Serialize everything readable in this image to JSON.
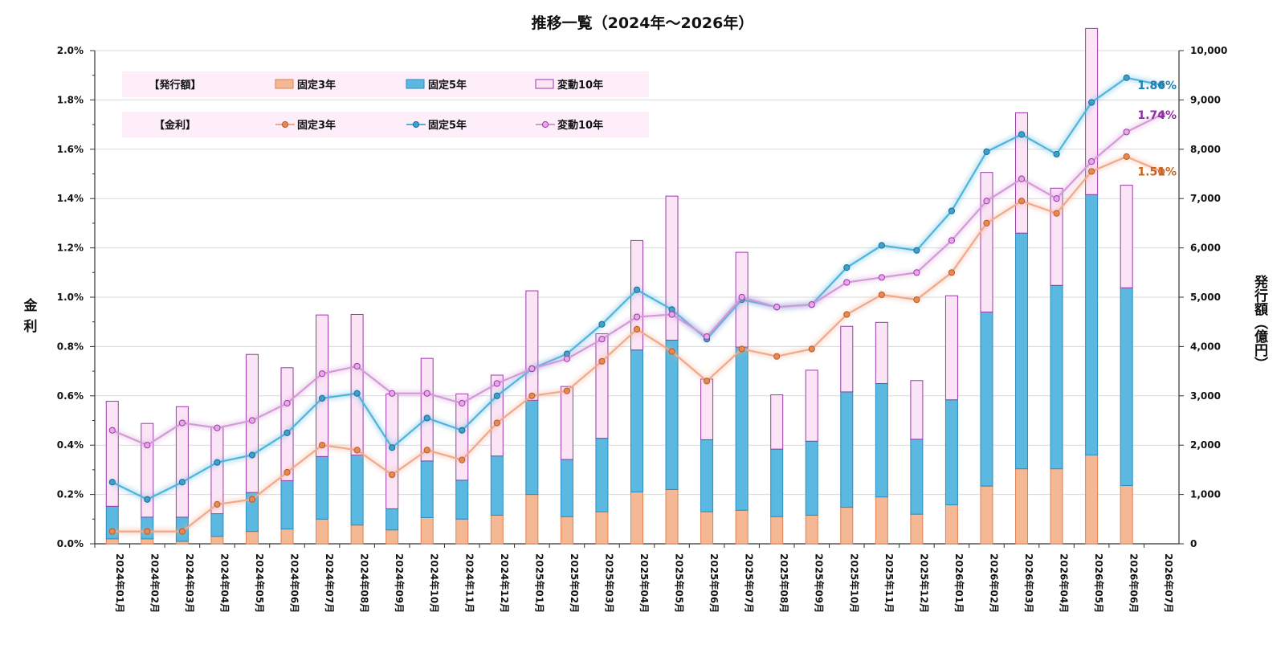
{
  "chart_data": {
    "type": "bar",
    "title": "推移一覧（2024年～2026年）",
    "ylabel_left": "金利",
    "ylabel_right": "発行額（億円）",
    "ylim_left": [
      0,
      2.0
    ],
    "ylim_right": [
      0,
      10000
    ],
    "left_ticks": [
      "0.0%",
      "0.2%",
      "0.4%",
      "0.6%",
      "0.8%",
      "1.0%",
      "1.2%",
      "1.4%",
      "1.6%",
      "1.8%",
      "2.0%"
    ],
    "right_ticks": [
      "0",
      "1,000",
      "2,000",
      "3,000",
      "4,000",
      "5,000",
      "6,000",
      "7,000",
      "8,000",
      "9,000",
      "10,000"
    ],
    "grid": true,
    "legend_position": "top-left",
    "categories": [
      "2024年01月",
      "2024年02月",
      "2024年03月",
      "2024年04月",
      "2024年05月",
      "2024年06月",
      "2024年07月",
      "2024年08月",
      "2024年09月",
      "2024年10月",
      "2024年11月",
      "2024年12月",
      "2025年01月",
      "2025年02月",
      "2025年03月",
      "2025年04月",
      "2025年05月",
      "2025年06月",
      "2025年07月",
      "2025年08月",
      "2025年09月",
      "2025年10月",
      "2025年11月",
      "2025年12月",
      "2026年01月",
      "2026年02月",
      "2026年03月",
      "2026年04月",
      "2026年05月",
      "2026年06月",
      "2026年07月"
    ],
    "legend": {
      "issue_group_label": "【発行額】",
      "rate_group_label": "【金利】",
      "issue_items": [
        "固定3年",
        "固定5年",
        "変動10年"
      ],
      "rate_items": [
        "固定3年",
        "固定5年",
        "変動10年"
      ]
    },
    "bar_series": [
      {
        "name": "固定3年",
        "color": "#f5b895",
        "stroke": "#e08050",
        "values": [
          100,
          100,
          50,
          150,
          250,
          300,
          500,
          380,
          280,
          530,
          500,
          580,
          1000,
          550,
          650,
          1050,
          1100,
          650,
          680,
          550,
          580,
          740,
          950,
          600,
          790,
          1170,
          1520,
          1520,
          1800,
          1180,
          null
        ]
      },
      {
        "name": "固定5年",
        "color": "#5bb8e0",
        "stroke": "#2a8cc0",
        "values": [
          660,
          440,
          490,
          460,
          790,
          980,
          1270,
          1420,
          430,
          1150,
          790,
          1200,
          1910,
          1160,
          1490,
          2880,
          3030,
          1460,
          3310,
          1370,
          1500,
          2340,
          2300,
          1520,
          2130,
          3530,
          4780,
          3720,
          5280,
          4010,
          null
        ]
      },
      {
        "name": "変動10年",
        "color": "#fbe4f5",
        "stroke": "#9b39a8",
        "values": [
          2130,
          1900,
          2240,
          1760,
          2800,
          2290,
          2870,
          2850,
          2330,
          2080,
          1750,
          1640,
          2220,
          1480,
          2120,
          2220,
          2920,
          1230,
          1920,
          1100,
          1440,
          1330,
          1240,
          1190,
          2110,
          2830,
          2440,
          1970,
          3370,
          2080,
          null
        ]
      }
    ],
    "line_series": [
      {
        "name": "固定3年",
        "color": "#f0a98a",
        "marker_fill": "#e88a50",
        "marker_stroke": "#b5592a",
        "values": [
          0.05,
          0.05,
          0.05,
          0.16,
          0.18,
          0.29,
          0.4,
          0.38,
          0.28,
          0.38,
          0.34,
          0.49,
          0.6,
          0.62,
          0.74,
          0.87,
          0.78,
          0.66,
          0.79,
          0.76,
          0.79,
          0.93,
          1.01,
          0.99,
          1.1,
          1.3,
          1.39,
          1.34,
          1.51,
          1.57,
          1.51
        ],
        "end_label": "1.51%",
        "end_label_color": "#c8641e"
      },
      {
        "name": "固定5年",
        "color": "#4fb4dc",
        "marker_fill": "#3fa0cc",
        "marker_stroke": "#1a6b96",
        "values": [
          0.25,
          0.18,
          0.25,
          0.33,
          0.36,
          0.45,
          0.59,
          0.61,
          0.39,
          0.51,
          0.46,
          0.6,
          0.71,
          0.77,
          0.89,
          1.03,
          0.95,
          0.83,
          0.99,
          0.96,
          0.97,
          1.12,
          1.21,
          1.19,
          1.35,
          1.59,
          1.66,
          1.58,
          1.79,
          1.89,
          1.86
        ],
        "end_label": "1.86%",
        "end_label_color": "#1f7fb0"
      },
      {
        "name": "変動10年",
        "color": "#d49ad8",
        "marker_fill": "#e8a8e8",
        "marker_stroke": "#9b39a8",
        "values": [
          0.46,
          0.4,
          0.49,
          0.47,
          0.5,
          0.57,
          0.69,
          0.72,
          0.61,
          0.61,
          0.57,
          0.65,
          0.71,
          0.75,
          0.83,
          0.92,
          0.93,
          0.84,
          1.0,
          0.96,
          0.97,
          1.06,
          1.08,
          1.1,
          1.23,
          1.39,
          1.48,
          1.4,
          1.55,
          1.67,
          1.74
        ],
        "end_label": "1.74%",
        "end_label_color": "#8e2fa0"
      }
    ]
  }
}
